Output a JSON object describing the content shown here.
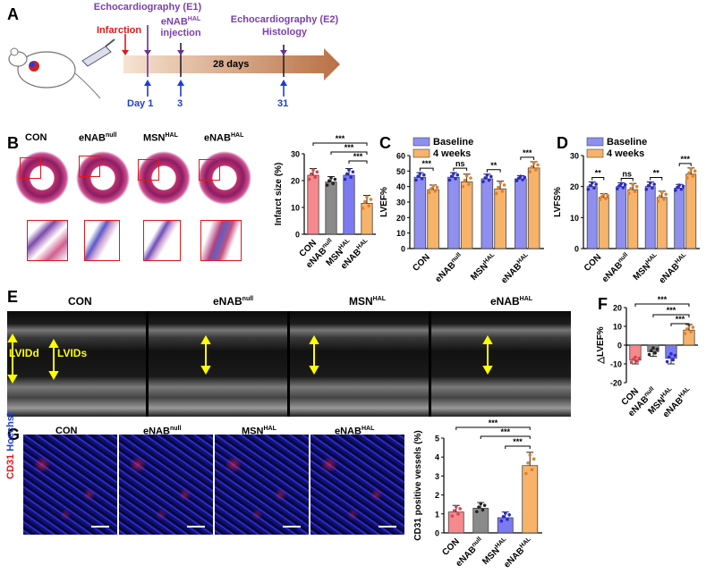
{
  "colors": {
    "con": "#f5898e",
    "null": "#8a8a8a",
    "msn": "#7b7bf0",
    "hal": "#f7b36a",
    "baseline": "#8f8ff0",
    "weeks": "#f7b36a",
    "timeline": "#c98a5e",
    "purple": "#7b3fb0",
    "blue": "#1f3fd1",
    "red": "#e01818"
  },
  "panelA": {
    "letter": "A",
    "infarction": "Infarction",
    "echo1": "Echocardiography (E1)",
    "enab_inj_1": "eNAB",
    "enab_inj_sup": "HAL",
    "enab_inj_2": "injection",
    "echo2": "Echocardiography (E2)",
    "histology": "Histology",
    "days": "28 days",
    "day1": "Day 1",
    "day3": "3",
    "day31": "31"
  },
  "groups": [
    {
      "main": "CON",
      "sup": ""
    },
    {
      "main": "eNAB",
      "sup": "null"
    },
    {
      "main": "MSN",
      "sup": "HAL"
    },
    {
      "main": "eNAB",
      "sup": "HAL"
    }
  ],
  "sig": {
    "ns": "ns",
    "s2": "**",
    "s3": "***"
  },
  "panelB": {
    "letter": "B"
  },
  "panelC": {
    "letter": "C"
  },
  "panelD": {
    "letter": "D"
  },
  "panelE": {
    "letter": "E",
    "lvidd": "LVIDd",
    "lvids": "LVIDs"
  },
  "panelF": {
    "letter": "F"
  },
  "panelG": {
    "letter": "G",
    "cd31": "CD31",
    "hoechst": "Hoechst"
  },
  "chart_data": [
    {
      "type": "bar",
      "panel": "B",
      "ylabel": "Infarct size (%)",
      "categories": [
        "CON",
        "eNAB null",
        "MSN HAL",
        "eNAB HAL"
      ],
      "values": [
        22,
        19.5,
        22,
        11.5
      ],
      "errors": [
        2.5,
        2,
        2.5,
        3
      ],
      "ylim": [
        0,
        30
      ],
      "yticks": [
        0,
        10,
        20,
        30
      ]
    },
    {
      "type": "bar",
      "panel": "C",
      "ylabel": "LVEF%",
      "categories": [
        "CON",
        "eNAB null",
        "MSN HAL",
        "eNAB HAL"
      ],
      "series": [
        {
          "name": "Baseline",
          "values": [
            46,
            46,
            45,
            45
          ],
          "errors": [
            3,
            3,
            3,
            2
          ]
        },
        {
          "name": "4 weeks",
          "values": [
            38,
            43,
            38.5,
            52
          ],
          "errors": [
            3,
            5,
            5,
            4
          ]
        }
      ],
      "significance": [
        "***",
        "ns",
        "**",
        "***"
      ],
      "ylim": [
        0,
        60
      ],
      "yticks": [
        0,
        10,
        20,
        30,
        40,
        50,
        60
      ]
    },
    {
      "type": "bar",
      "panel": "D",
      "ylabel": "LVFS%",
      "categories": [
        "CON",
        "eNAB null",
        "MSN HAL",
        "eNAB HAL"
      ],
      "series": [
        {
          "name": "Baseline",
          "values": [
            20,
            20,
            20,
            19.5
          ],
          "errors": [
            1.5,
            1.2,
            1.5,
            1.2
          ]
        },
        {
          "name": "4 weeks",
          "values": [
            16.5,
            19,
            16.5,
            24
          ],
          "errors": [
            1.2,
            2,
            2,
            2
          ]
        }
      ],
      "significance": [
        "**",
        "ns",
        "**",
        "***"
      ],
      "ylim": [
        0,
        30
      ],
      "yticks": [
        0,
        10,
        20,
        30
      ]
    },
    {
      "type": "bar",
      "panel": "F",
      "ylabel": "△LVEF%",
      "categories": [
        "CON",
        "eNAB null",
        "MSN HAL",
        "eNAB HAL"
      ],
      "values": [
        -8,
        -3.5,
        -7,
        8
      ],
      "errors": [
        2,
        2.5,
        3,
        3
      ],
      "ylim": [
        -20,
        20
      ],
      "yticks": [
        -20,
        -10,
        0,
        10,
        20
      ]
    },
    {
      "type": "bar",
      "panel": "G",
      "ylabel": "CD31 positive vessels (%)",
      "categories": [
        "CON",
        "eNAB null",
        "MSN HAL",
        "eNAB HAL"
      ],
      "values": [
        1.1,
        1.3,
        0.8,
        3.55
      ],
      "errors": [
        0.35,
        0.3,
        0.3,
        0.7
      ],
      "ylim": [
        0,
        5
      ],
      "yticks": [
        0,
        1,
        2,
        3,
        4,
        5
      ]
    }
  ]
}
